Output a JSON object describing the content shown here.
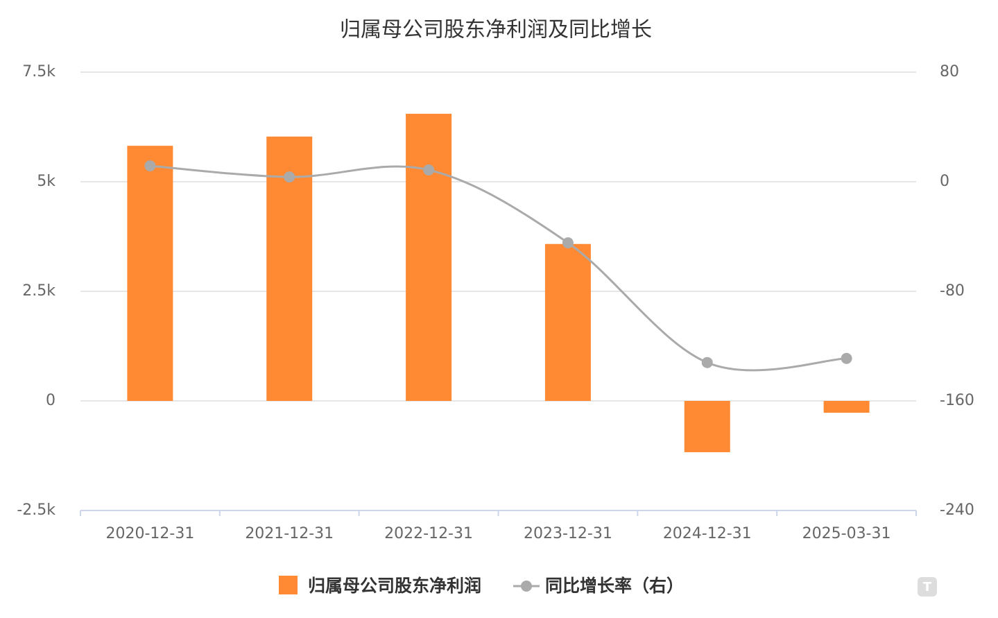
{
  "chart_data": {
    "type": "bar-line",
    "title": "归属母公司股东净利润及同比增长",
    "categories": [
      "2020-12-31",
      "2021-12-31",
      "2022-12-31",
      "2023-12-31",
      "2024-12-31",
      "2025-03-31"
    ],
    "series": [
      {
        "name": "归属母公司股东净利润",
        "type": "bar",
        "color": "#ff8a33",
        "values": [
          5820,
          6030,
          6550,
          3580,
          -1170,
          -270
        ]
      },
      {
        "name": "同比增长率（右）",
        "type": "line",
        "axis": "y2",
        "color": "#aaaaaa",
        "values": [
          11.6,
          3.5,
          8.6,
          -44.6,
          -132,
          -129
        ]
      }
    ],
    "ylim": [
      -2500,
      7500
    ],
    "yticks": [
      {
        "value": -2500,
        "label": "-2.5k"
      },
      0,
      {
        "value": 2500,
        "label": "2.5k"
      },
      {
        "value": 5000,
        "label": "5k"
      },
      {
        "value": 7500,
        "label": "7.5k"
      }
    ],
    "y2lim": [
      -240,
      80
    ],
    "y2ticks": [
      -240,
      -160,
      -80,
      0,
      80
    ],
    "grid": true,
    "legend": "bottom"
  }
}
